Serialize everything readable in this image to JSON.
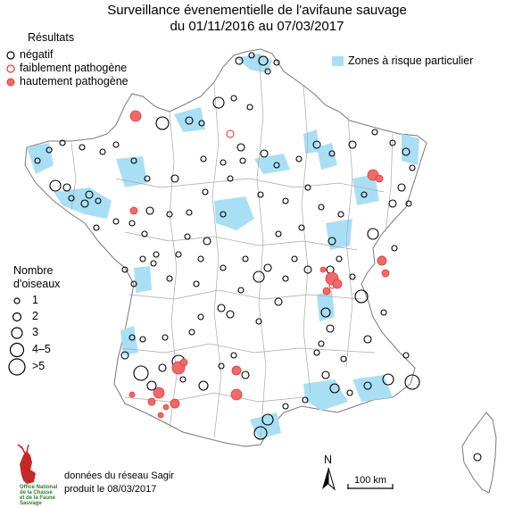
{
  "title": {
    "line1": "Surveillance évenementielle de l'avifaune sauvage",
    "line2": "du 01/11/2016 au 07/03/2017"
  },
  "legend_results": {
    "heading": "Résultats",
    "items": [
      {
        "label": "négatif",
        "stroke": "#000000",
        "fill": "none"
      },
      {
        "label": "faiblement pathogène",
        "stroke": "#e53935",
        "fill": "none"
      },
      {
        "label": "hautement pathogène",
        "stroke": "#e53935",
        "fill": "#ef6a6a"
      }
    ]
  },
  "legend_zone": {
    "label": "Zones à risque particulier",
    "color": "#a9dff5"
  },
  "legend_size": {
    "heading_line1": "Nombre",
    "heading_line2": "d'oiseaux",
    "items": [
      "1",
      "2",
      "3",
      "4–5",
      ">5"
    ]
  },
  "north_label": "N",
  "scale_label": "100 km",
  "logo": {
    "line1": "Office National",
    "line2": "de la Chasse",
    "line3": "et de la Faune Sauvage"
  },
  "credit": {
    "line1": "données du réseau Sagir",
    "line2": "produit le 08/03/2017"
  },
  "colors": {
    "zone": "#a9dff5",
    "border": "#9a9a9a",
    "negative": "#000000",
    "positive": "#e53935"
  }
}
